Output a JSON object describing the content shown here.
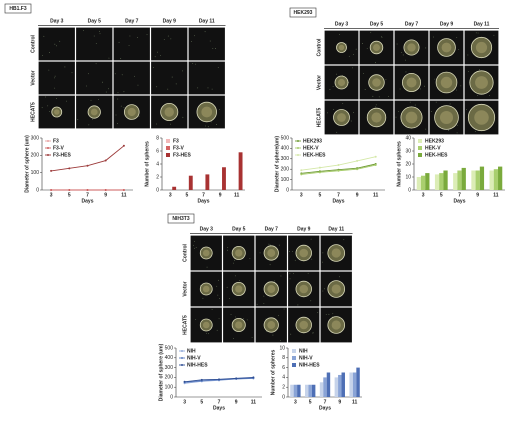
{
  "panels": [
    {
      "label": "HB1.F3",
      "days": [
        "Day 3",
        "Day 5",
        "Day 7",
        "Day 9",
        "Day 11"
      ],
      "rows": [
        "Control",
        "Vector",
        "HECAT5"
      ]
    },
    {
      "label": "HEK293",
      "days": [
        "Day 3",
        "Day 5",
        "Day 7",
        "Day 9",
        "Day 11"
      ],
      "rows": [
        "Control",
        "Vector",
        "HECAT5"
      ]
    },
    {
      "label": "NIH3T3",
      "days": [
        "Day 3",
        "Day 5",
        "Day 7",
        "Day 9",
        "Day 11"
      ],
      "rows": [
        "Control",
        "Vector",
        "HECAT5"
      ]
    }
  ],
  "chart_data": [
    {
      "type": "line",
      "y_label": "Diameter of sphere (um)",
      "x_label": "Days",
      "categories": [
        "3",
        "5",
        "7",
        "9",
        "11"
      ],
      "ylim": [
        0,
        300
      ],
      "yticks": [
        0,
        100,
        200,
        300
      ],
      "legend": "upper left",
      "series": [
        {
          "name": "F3",
          "color": "#e8a0a0",
          "values": [
            0,
            0,
            0,
            0,
            0
          ]
        },
        {
          "name": "F3-V",
          "color": "#cc5c5c",
          "values": [
            0,
            0,
            0,
            0,
            0
          ]
        },
        {
          "name": "F3-HES",
          "color": "#9c3a3a",
          "values": [
            110,
            125,
            140,
            170,
            255
          ]
        }
      ]
    },
    {
      "type": "bar",
      "y_label": "Number of spheres",
      "x_label": "Days",
      "categories": [
        "3",
        "5",
        "7",
        "9",
        "11"
      ],
      "ylim": [
        0,
        8
      ],
      "yticks": [
        0,
        2,
        4,
        6,
        8
      ],
      "legend": "upper left",
      "series": [
        {
          "name": "F3",
          "color": "#f2b8b8",
          "values": [
            0,
            0,
            0,
            0,
            0
          ]
        },
        {
          "name": "F3-V",
          "color": "#d46262",
          "values": [
            0,
            0,
            0,
            0,
            0
          ]
        },
        {
          "name": "F3-HES",
          "color": "#a83232",
          "values": [
            0.5,
            2.2,
            2.4,
            3.5,
            5.8
          ]
        }
      ]
    },
    {
      "type": "line",
      "y_label": "Diameter of sphere(um)",
      "x_label": "Days",
      "categories": [
        "3",
        "5",
        "7",
        "9",
        "11"
      ],
      "ylim": [
        0,
        500
      ],
      "yticks": [
        0,
        100,
        200,
        300,
        400,
        500
      ],
      "legend": "upper left",
      "series": [
        {
          "name": "HEK293",
          "color": "#6f9a35",
          "values": [
            160,
            180,
            195,
            210,
            250
          ]
        },
        {
          "name": "HEK-V",
          "color": "#a6cc6a",
          "values": [
            150,
            170,
            185,
            200,
            240
          ]
        },
        {
          "name": "HEK-HES",
          "color": "#d4e8a8",
          "values": [
            190,
            215,
            240,
            280,
            320
          ]
        }
      ]
    },
    {
      "type": "bar",
      "y_label": "Number of spheres",
      "x_label": "Days",
      "categories": [
        "3",
        "5",
        "7",
        "9",
        "11"
      ],
      "ylim": [
        0,
        40
      ],
      "yticks": [
        0,
        10,
        20,
        30,
        40
      ],
      "legend": "upper left",
      "series": [
        {
          "name": "HEK293",
          "color": "#dcedb6",
          "values": [
            10,
            12,
            13,
            15,
            15
          ]
        },
        {
          "name": "HEK-V",
          "color": "#a9cf6e",
          "values": [
            11,
            13,
            15,
            15,
            16
          ]
        },
        {
          "name": "HEK-HES",
          "color": "#7aaa3c",
          "values": [
            13,
            15,
            17,
            18,
            18
          ]
        }
      ]
    },
    {
      "type": "line",
      "y_label": "Diameter of sphere (um)",
      "x_label": "Days",
      "categories": [
        "3",
        "5",
        "7",
        "9",
        "11"
      ],
      "ylim": [
        0,
        500
      ],
      "yticks": [
        0,
        100,
        200,
        300,
        400,
        500
      ],
      "legend": "upper left",
      "series": [
        {
          "name": "NIH",
          "color": "#8fa8d8",
          "values": [
            140,
            160,
            170,
            185,
            195
          ]
        },
        {
          "name": "NIH-V",
          "color": "#5a7cc0",
          "values": [
            150,
            165,
            175,
            185,
            190
          ]
        },
        {
          "name": "NIH-HES",
          "color": "#2f4f95",
          "values": [
            155,
            175,
            180,
            190,
            200
          ]
        }
      ]
    },
    {
      "type": "bar",
      "y_label": "Number of spheres",
      "x_label": "Days",
      "categories": [
        "3",
        "5",
        "7",
        "9",
        "11"
      ],
      "ylim": [
        0,
        10
      ],
      "yticks": [
        0,
        2,
        4,
        6,
        8,
        10
      ],
      "legend": "upper left",
      "series": [
        {
          "name": "NIH",
          "color": "#c6d3ea",
          "values": [
            2.5,
            2.5,
            3,
            4,
            5
          ]
        },
        {
          "name": "NIH-V",
          "color": "#8aa4d6",
          "values": [
            2.5,
            2.5,
            4,
            4.5,
            5
          ]
        },
        {
          "name": "NIH-HES",
          "color": "#4e6fb5",
          "values": [
            2.5,
            2.5,
            5,
            5,
            6
          ]
        }
      ]
    }
  ]
}
